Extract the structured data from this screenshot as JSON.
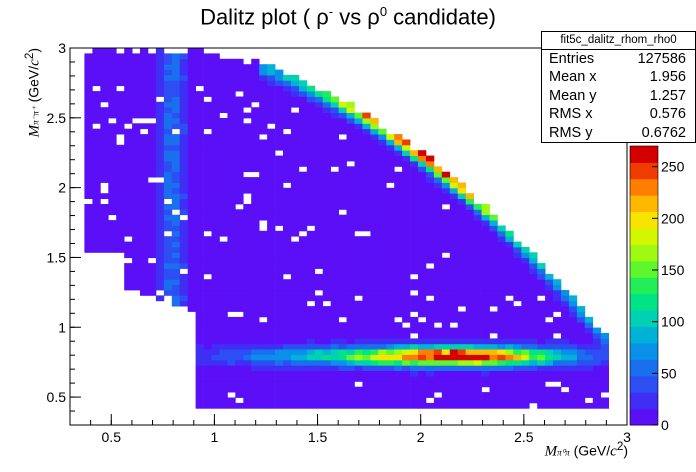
{
  "chart_data": {
    "type": "heatmap",
    "title_prefix": "Dalitz plot ( ρ",
    "title_sup1": "-",
    "title_mid": " vs ρ",
    "title_sup2": "0",
    "title_suffix": " candidate)",
    "xlabel_var": "M",
    "xlabel_sub": "π⁰π",
    "xlabel_unit_prefix": " (GeV/",
    "xlabel_unit_c": "c",
    "xlabel_unit_exp": "2",
    "xlabel_unit_suffix": ")",
    "ylabel_var": "M",
    "ylabel_sub": "π⁻π⁺",
    "ylabel_unit_prefix": " (GeV/",
    "ylabel_unit_c": "c",
    "ylabel_unit_exp": "2",
    "ylabel_unit_suffix": ")",
    "xlim": [
      0.3,
      3.0
    ],
    "ylim": [
      0.3,
      3.0
    ],
    "xticks": [
      "0.5",
      "1",
      "1.5",
      "2",
      "2.5",
      "3"
    ],
    "xtick_values": [
      0.5,
      1.0,
      1.5,
      2.0,
      2.5,
      3.0
    ],
    "yticks": [
      "0.5",
      "1",
      "1.5",
      "2",
      "2.5",
      "3"
    ],
    "ytick_values": [
      0.5,
      1.0,
      1.5,
      2.0,
      2.5,
      3.0
    ],
    "zlim": [
      0,
      270
    ],
    "zticks": [
      "0",
      "50",
      "100",
      "150",
      "200",
      "250"
    ],
    "ztick_values": [
      0,
      50,
      100,
      150,
      200,
      250
    ],
    "palette": [
      "#5b0ff6",
      "#3f2ff4",
      "#2c4ef2",
      "#1a6fef",
      "#0990e8",
      "#00b2d6",
      "#00d1b2",
      "#00e486",
      "#22ef58",
      "#5ef72e",
      "#9dfa10",
      "#d3f700",
      "#f9e400",
      "#ffb800",
      "#ff7d00",
      "#f03c00",
      "#d40000"
    ],
    "features": [
      {
        "name": "rho0 band",
        "y_center": 0.775,
        "y_width": 0.05,
        "x_range": [
          0.9,
          2.85
        ],
        "peak_x": 2.25,
        "peak": 270
      },
      {
        "name": "rho minus band",
        "axis": "x",
        "x_center": 0.775,
        "x_width": 0.05,
        "y_range": [
          1.2,
          2.95
        ],
        "peak": 55
      },
      {
        "name": "kinematic edge band",
        "peak": 260
      }
    ],
    "stats": {
      "name": "fit5c_dalitz_rhom_rho0",
      "entries_label": "Entries",
      "entries": "127586",
      "meanx_label": "Mean x",
      "meanx": "1.956",
      "meany_label": "Mean y",
      "meany": "1.257",
      "rmsx_label": "RMS x",
      "rmsx": "0.576",
      "rmsy_label": "RMS y",
      "rmsy": "0.6762"
    }
  }
}
